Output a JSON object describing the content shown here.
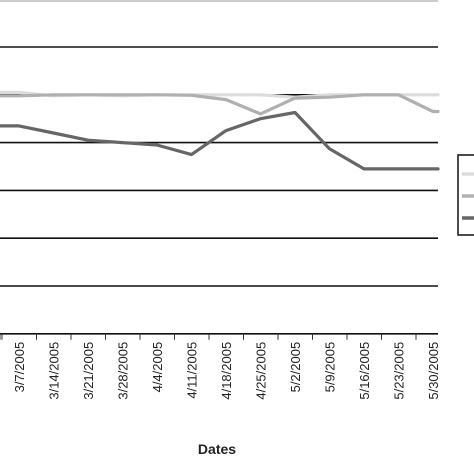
{
  "chart_data": {
    "type": "line",
    "title": "",
    "xlabel": "Dates",
    "ylabel": "",
    "x": [
      "3/7/2005",
      "3/14/2005",
      "3/21/2005",
      "3/28/2005",
      "4/4/2005",
      "4/11/2005",
      "4/18/2005",
      "4/25/2005",
      "5/2/2005",
      "5/9/2005",
      "5/16/2005",
      "5/23/2005",
      "5/30/2005"
    ],
    "ylim": [
      0,
      7
    ],
    "grid": true,
    "legend_position": "right",
    "series": [
      {
        "color": "#dcdcdc",
        "values": [
          5.05,
          4.98,
          5.0,
          4.98,
          5.0,
          5.0,
          5.0,
          5.0,
          4.95,
          5.0,
          5.0,
          5.0,
          5.0
        ]
      },
      {
        "color": "#b0b0b0",
        "values": [
          4.98,
          5.0,
          5.0,
          5.0,
          5.0,
          4.99,
          4.9,
          4.6,
          4.93,
          4.95,
          5.0,
          5.0,
          4.65
        ]
      },
      {
        "color": "#666666",
        "values": [
          4.35,
          4.2,
          4.05,
          4.0,
          3.95,
          3.75,
          4.25,
          4.5,
          4.63,
          3.87,
          3.45,
          3.45,
          3.45
        ]
      }
    ]
  }
}
